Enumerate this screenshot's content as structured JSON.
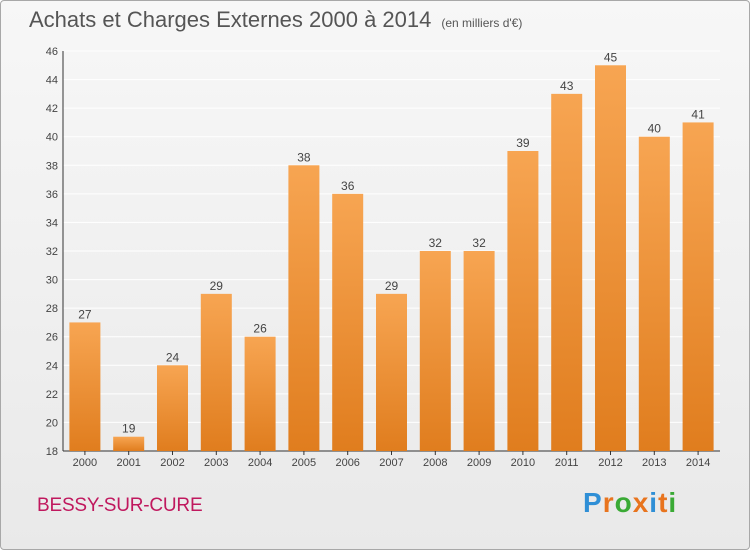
{
  "title": "Achats et Charges Externes 2000 à 2014",
  "unit": "(en milliers d'€)",
  "place": "BESSY-SUR-CURE",
  "logo": {
    "text": "Proxiti",
    "letter_colors": [
      "#2f8fd6",
      "#e8741e",
      "#3aaa35",
      "#e8741e",
      "#2f8fd6",
      "#e8741e",
      "#3aaa35"
    ]
  },
  "colors": {
    "bar_top": "#f7a552",
    "bar_bottom": "#e07d1e",
    "grid": "#ffffff",
    "axis_text": "#444444"
  },
  "chart_data": {
    "type": "bar",
    "categories": [
      "2000",
      "2001",
      "2002",
      "2003",
      "2004",
      "2005",
      "2006",
      "2007",
      "2008",
      "2009",
      "2010",
      "2011",
      "2012",
      "2013",
      "2014"
    ],
    "values": [
      27,
      19,
      24,
      29,
      26,
      38,
      36,
      29,
      32,
      32,
      39,
      43,
      45,
      40,
      41
    ],
    "data_labels": [
      "27",
      "19",
      "24",
      "29",
      "26",
      "38",
      "36",
      "29",
      "32",
      "32",
      "39",
      "43",
      "45",
      "40",
      "41"
    ],
    "title": "Achats et Charges Externes 2000 à 2014",
    "xlabel": "",
    "ylabel": "",
    "ylim": [
      18,
      46
    ],
    "yticks": [
      18,
      20,
      22,
      24,
      26,
      28,
      30,
      32,
      34,
      36,
      38,
      40,
      42,
      44,
      46
    ],
    "grid": true,
    "legend": "none"
  }
}
